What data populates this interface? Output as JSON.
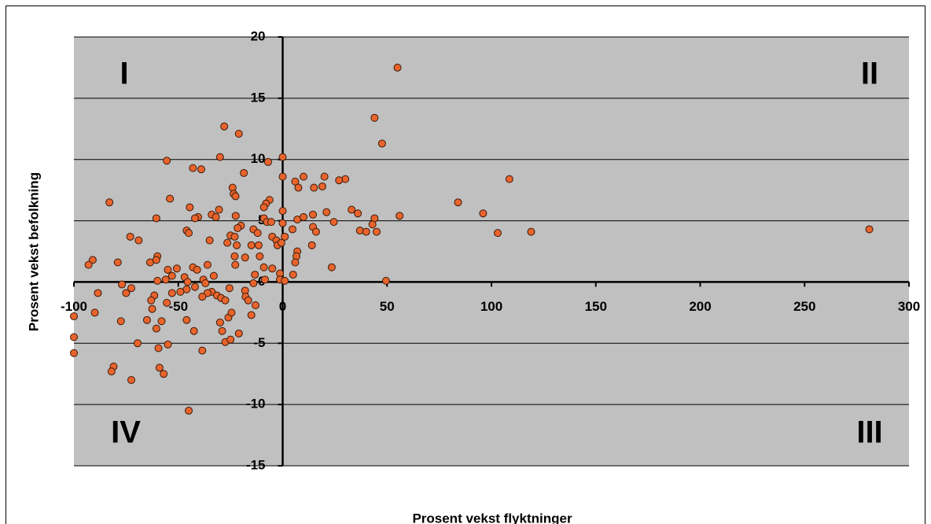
{
  "chart_data": {
    "type": "scatter",
    "xlabel": "Prosent vekst flyktninger",
    "ylabel": "Prosent vekst befolkning",
    "quadrant_labels": [
      "I",
      "II",
      "III",
      "IV"
    ],
    "xlim": [
      -100,
      300
    ],
    "xticks": [
      -100,
      -50,
      0,
      50,
      100,
      150,
      200,
      250,
      300
    ],
    "ylim": [
      -15,
      20
    ],
    "yticks": [
      -15,
      -10,
      -5,
      0,
      5,
      10,
      15,
      20
    ],
    "grid": true,
    "color": "#e8642c",
    "x": [
      55,
      44,
      47.6,
      -28,
      -21,
      0,
      -30,
      -55.5,
      -43,
      -39,
      -18.6,
      -7,
      0,
      108.6,
      30,
      27,
      20,
      10,
      6,
      7.5,
      19,
      15,
      -24,
      -23.5,
      -22.6,
      -54,
      -83,
      84,
      -6.3,
      -8,
      -9,
      -44.5,
      -40.5,
      -42,
      -30.5,
      -34,
      -32,
      -22.5,
      -9,
      -7.5,
      0,
      0,
      7,
      10,
      14.5,
      21,
      33,
      36,
      44,
      56,
      96,
      -60.5,
      -20,
      -21.6,
      -5.5,
      4.7,
      14.5,
      16,
      24.5,
      43,
      37,
      40,
      45,
      103,
      119,
      281,
      -46,
      -45,
      -25,
      -14,
      -12,
      -73,
      -69,
      -35,
      -26.5,
      -23,
      -22,
      -15,
      -11.5,
      -5,
      -3,
      -2.5,
      -0.6,
      1,
      14,
      7,
      6.6,
      6,
      5,
      23.5,
      -91,
      -93,
      -79,
      -63.5,
      -60,
      -60.5,
      -23,
      -18,
      -11,
      -22.7,
      -36,
      -55,
      -50.7,
      -43,
      -41,
      -33,
      -9,
      -5,
      -13.3,
      -8.5,
      -1.3,
      -1.3,
      1,
      49.5,
      -60,
      -56,
      -53,
      -47,
      -45.5,
      -38,
      -37,
      -42,
      -46,
      -49,
      -53,
      -61.5,
      -63,
      -55.5,
      -77,
      -72.5,
      -75,
      -88.5,
      -90,
      -100,
      -100,
      -100,
      -77.5,
      -69.5,
      -65,
      -62.5,
      -58,
      -60.5,
      -59.5,
      -55,
      -59,
      -57,
      -81,
      -82,
      -72.5,
      -46,
      -42.5,
      -38.5,
      -45,
      -34,
      -31.5,
      -29.5,
      -27.5,
      -36,
      -38.5,
      -30,
      -29,
      -26,
      -27.5,
      -25,
      -21,
      -15,
      -13,
      -18,
      -17.8,
      -16.5,
      -24.5,
      -25.5,
      -14
    ],
    "y": [
      17.5,
      13.4,
      11.3,
      12.7,
      12.1,
      10.2,
      10.2,
      9.9,
      9.3,
      9.2,
      8.9,
      9.8,
      8.6,
      8.4,
      8.4,
      8.3,
      8.6,
      8.6,
      8.2,
      7.7,
      7.8,
      7.7,
      7.7,
      7.2,
      7.0,
      6.8,
      6.5,
      6.5,
      6.7,
      6.4,
      6.1,
      6.1,
      5.3,
      5.2,
      5.9,
      5.5,
      5.3,
      5.4,
      5.2,
      4.9,
      5.8,
      4.8,
      5.1,
      5.3,
      5.5,
      5.7,
      5.9,
      5.6,
      5.2,
      5.4,
      5.6,
      5.2,
      4.6,
      4.4,
      4.9,
      4.3,
      4.5,
      4.1,
      4.9,
      4.7,
      4.2,
      4.1,
      4.1,
      4.0,
      4.1,
      4.3,
      4.2,
      4.0,
      3.8,
      4.3,
      4.0,
      3.7,
      3.4,
      3.4,
      3.2,
      3.7,
      3.0,
      3.0,
      3.0,
      3.7,
      3.4,
      3.0,
      3.2,
      3.7,
      3.0,
      2.5,
      2.1,
      1.6,
      0.6,
      1.2,
      1.8,
      1.4,
      1.6,
      1.6,
      2.1,
      1.8,
      2.1,
      2.0,
      2.1,
      1.4,
      1.4,
      1.0,
      1.1,
      1.2,
      1.0,
      0.5,
      1.2,
      1.1,
      0.6,
      0.2,
      0.7,
      0.2,
      0.1,
      0.1,
      0.1,
      0.2,
      0.5,
      0.4,
      0.0,
      0.2,
      -0.1,
      -0.4,
      -0.6,
      -0.8,
      -0.9,
      -1.1,
      -1.5,
      -1.7,
      -0.2,
      -0.5,
      -0.9,
      -0.9,
      -2.5,
      -2.8,
      -4.5,
      -5.8,
      -3.2,
      -5.0,
      -3.1,
      -2.2,
      -3.2,
      -3.8,
      -5.4,
      -5.1,
      -7.0,
      -7.5,
      -6.9,
      -7.3,
      -8.0,
      -3.1,
      -4.0,
      -5.6,
      -10.5,
      -0.8,
      -1.1,
      -1.3,
      -1.5,
      -0.9,
      -1.2,
      -3.3,
      -4.0,
      -2.9,
      -4.9,
      -4.7,
      -4.2,
      -2.7,
      -1.9,
      -0.7,
      -1.2,
      -1.5,
      -2.5,
      -0.5,
      -0.1
    ]
  }
}
